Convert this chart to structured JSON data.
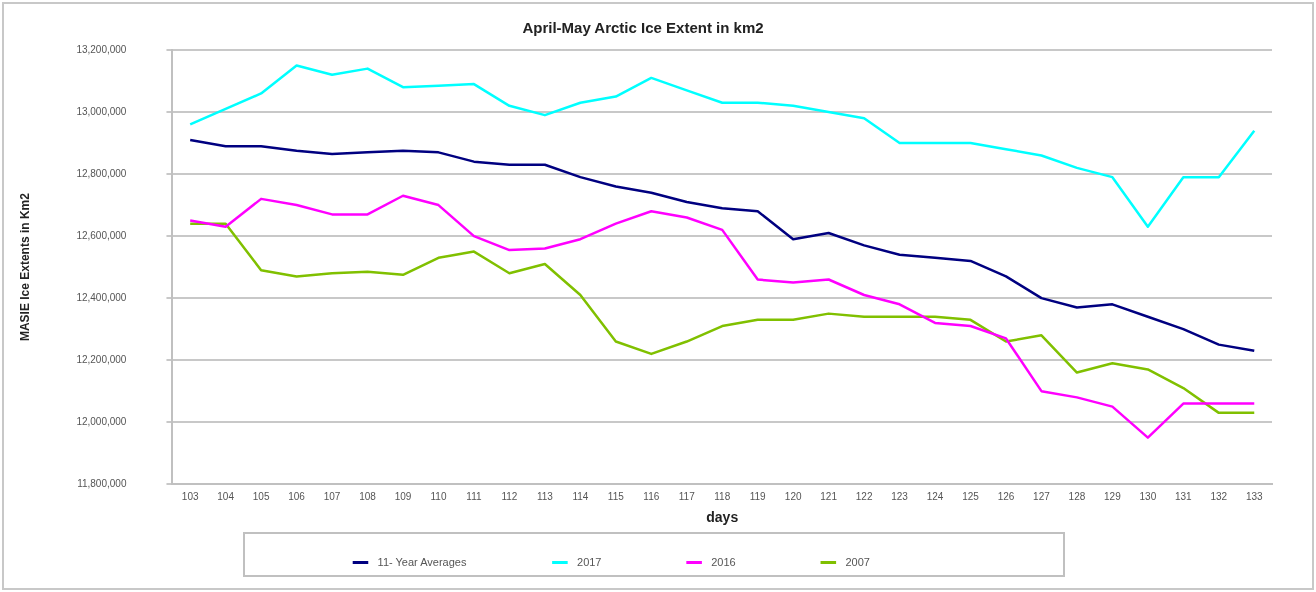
{
  "chart_data": {
    "type": "line",
    "title": "April-May Arctic Ice Extent in km2",
    "xlabel": "days",
    "ylabel": "MASIE Ice Extents in Km2",
    "categories": [
      "103",
      "104",
      "105",
      "106",
      "107",
      "108",
      "109",
      "110",
      "111",
      "112",
      "113",
      "114",
      "115",
      "116",
      "117",
      "118",
      "119",
      "120",
      "121",
      "122",
      "123",
      "124",
      "125",
      "126",
      "127",
      "128",
      "129",
      "130",
      "131",
      "132",
      "133"
    ],
    "series": [
      {
        "name": "11- Year Averages",
        "color": "#000080",
        "values": [
          12910000,
          12890000,
          12890000,
          12875000,
          12865000,
          12870000,
          12875000,
          12870000,
          12840000,
          12830000,
          12830000,
          12790000,
          12760000,
          12740000,
          12710000,
          12690000,
          12680000,
          12590000,
          12610000,
          12570000,
          12540000,
          12530000,
          12520000,
          12470000,
          12400000,
          12370000,
          12380000,
          12340000,
          12300000,
          12250000,
          12230000
        ]
      },
      {
        "name": "2017",
        "color": "#00ffff",
        "values": [
          12960000,
          13010000,
          13060000,
          13150000,
          13120000,
          13140000,
          13080000,
          13085000,
          13090000,
          13020000,
          12990000,
          13030000,
          13050000,
          13110000,
          13070000,
          13030000,
          13030000,
          13020000,
          13000000,
          12980000,
          12900000,
          12900000,
          12900000,
          12880000,
          12860000,
          12820000,
          12790000,
          12630000,
          12790000,
          12790000,
          12940000
        ]
      },
      {
        "name": "2016",
        "color": "#ff00ff",
        "values": [
          12650000,
          12630000,
          12720000,
          12700000,
          12670000,
          12670000,
          12730000,
          12700000,
          12600000,
          12555000,
          12560000,
          12590000,
          12640000,
          12680000,
          12660000,
          12620000,
          12460000,
          12450000,
          12460000,
          12410000,
          12380000,
          12320000,
          12310000,
          12270000,
          12100000,
          12080000,
          12050000,
          11950000,
          12060000,
          12060000,
          12060000
        ]
      },
      {
        "name": "2007",
        "color": "#80c000",
        "values": [
          12640000,
          12640000,
          12490000,
          12470000,
          12480000,
          12485000,
          12475000,
          12530000,
          12550000,
          12480000,
          12510000,
          12410000,
          12260000,
          12220000,
          12260000,
          12310000,
          12330000,
          12330000,
          12350000,
          12340000,
          12340000,
          12340000,
          12330000,
          12260000,
          12280000,
          12160000,
          12190000,
          12170000,
          12110000,
          12030000,
          12030000
        ]
      }
    ],
    "ylim": [
      11800000,
      13200000
    ],
    "yticks": [
      {
        "value": 11800000,
        "label": "11,800,000"
      },
      {
        "value": 12000000,
        "label": "12,000,000"
      },
      {
        "value": 12200000,
        "label": "12,200,000"
      },
      {
        "value": 12400000,
        "label": "12,400,000"
      },
      {
        "value": 12600000,
        "label": "12,600,000"
      },
      {
        "value": 12800000,
        "label": "12,800,000"
      },
      {
        "value": 13000000,
        "label": "13,000,000"
      },
      {
        "value": 13200000,
        "label": "13,200,000"
      }
    ],
    "grid": "y",
    "legend": "bottom",
    "marker": "none",
    "line_style": "solid"
  }
}
